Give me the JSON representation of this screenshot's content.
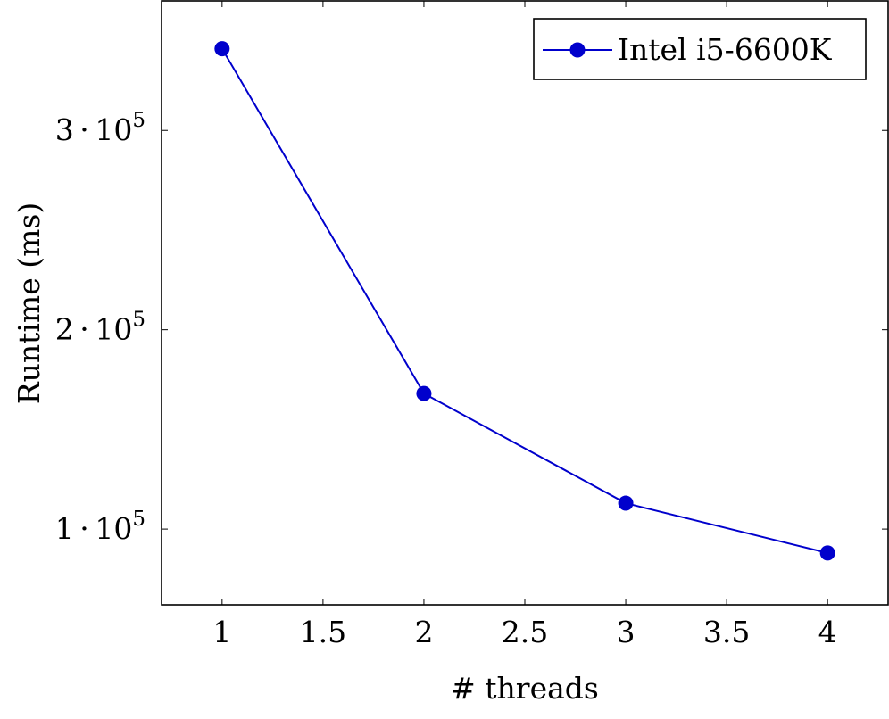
{
  "chart_data": {
    "type": "line",
    "xlabel": "# threads",
    "ylabel": "Runtime (ms)",
    "xlim": [
      0.7,
      4.3
    ],
    "ylim": [
      62000,
      365000
    ],
    "x_ticks": [
      {
        "value": 1,
        "label": "1"
      },
      {
        "value": 1.5,
        "label": "1.5"
      },
      {
        "value": 2,
        "label": "2"
      },
      {
        "value": 2.5,
        "label": "2.5"
      },
      {
        "value": 3,
        "label": "3"
      },
      {
        "value": 3.5,
        "label": "3.5"
      },
      {
        "value": 4,
        "label": "4"
      }
    ],
    "y_ticks": [
      {
        "value": 100000,
        "mantissa": "1",
        "exp": "5"
      },
      {
        "value": 200000,
        "mantissa": "2",
        "exp": "5"
      },
      {
        "value": 300000,
        "mantissa": "3",
        "exp": "5"
      }
    ],
    "grid": false,
    "legend_position": "top-right",
    "series": [
      {
        "name": "Intel i5-6600K",
        "color": "#0000cc",
        "marker": "circle",
        "x": [
          1,
          2,
          3,
          4
        ],
        "y": [
          341000,
          168000,
          113000,
          88000
        ]
      }
    ]
  }
}
